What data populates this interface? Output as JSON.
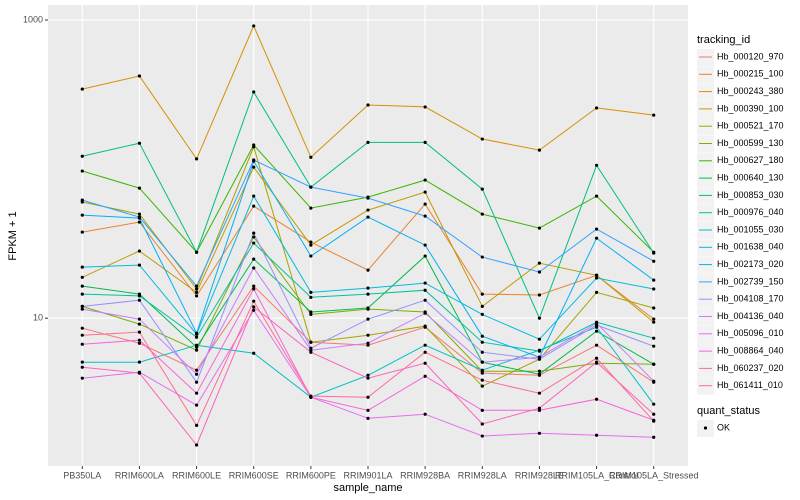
{
  "chart_data": {
    "type": "line",
    "log_y": true,
    "grid": true,
    "x_label": "sample_name",
    "y_label": "FPKM + 1",
    "categories": [
      "PB350LA",
      "RRIM600LA",
      "RRIM600LE",
      "RRIM600SE",
      "RRIM600PE",
      "RRIM901LA",
      "RRIM928BA",
      "RRIM928LA",
      "RRIM928LE",
      "RRIM105LA_Control",
      "RRIM105LA_Stressed"
    ],
    "ylim": [
      1.02,
      1260
    ],
    "yticks": [
      10,
      1000
    ],
    "legend_title": "tracking_id",
    "point_legend_title": "quant_status",
    "point_legend_items": [
      "OK"
    ],
    "series": [
      {
        "name": "Hb_000120_970",
        "color": "#F8766D",
        "values": [
          8.57,
          6.79,
          4.48,
          16.4,
          6.9,
          6.59,
          8.7,
          4.28,
          4.14,
          6.59,
          3.72
        ]
      },
      {
        "name": "Hb_000215_100",
        "color": "#EA8331",
        "values": [
          37.8,
          44.1,
          14.1,
          56.4,
          32.4,
          21.0,
          58.2,
          14.5,
          14.3,
          19.4,
          9.85
        ]
      },
      {
        "name": "Hb_000243_380",
        "color": "#D89000",
        "values": [
          344,
          421,
          117,
          912,
          120,
          269,
          261,
          159,
          134,
          257,
          230
        ]
      },
      {
        "name": "Hb_000390_100",
        "color": "#C09B00",
        "values": [
          18.8,
          28.2,
          14.9,
          103,
          30.9,
          53.1,
          70.1,
          12.0,
          23.4,
          19.4,
          9.4
        ]
      },
      {
        "name": "Hb_000521_170",
        "color": "#A3A500",
        "values": [
          60.1,
          49.9,
          15.7,
          141,
          6.9,
          7.69,
          8.84,
          3.5,
          5.31,
          14.9,
          11.7
        ]
      },
      {
        "name": "Hb_000599_130",
        "color": "#7CAE00",
        "values": [
          12.0,
          9.12,
          6.1,
          35.0,
          10.6,
          11.5,
          11.0,
          4.41,
          4.41,
          4.99,
          4.91
        ]
      },
      {
        "name": "Hb_000627_180",
        "color": "#39B600",
        "values": [
          97,
          74.5,
          27.7,
          145,
          54.7,
          64.9,
          84.4,
          49.9,
          40.2,
          65.9,
          27.7
        ]
      },
      {
        "name": "Hb_000640_130",
        "color": "#00BB4E",
        "values": [
          16.4,
          14.5,
          6.39,
          24.9,
          11.0,
          11.7,
          26.1,
          5.07,
          4.21,
          8.18,
          4.91
        ]
      },
      {
        "name": "Hb_000853_030",
        "color": "#00BF7D",
        "values": [
          122,
          149,
          27.7,
          329,
          75.7,
          151,
          151,
          73.4,
          10,
          106,
          27.3
        ]
      },
      {
        "name": "Hb_000976_040",
        "color": "#00C1A3",
        "values": [
          14.5,
          14.1,
          7.45,
          31.9,
          13.8,
          14.5,
          15.4,
          6.9,
          6.01,
          9.4,
          7.34
        ]
      },
      {
        "name": "Hb_001055_030",
        "color": "#00BFC4",
        "values": [
          5.07,
          5.07,
          6.59,
          5.82,
          2.95,
          4.14,
          6.59,
          4.48,
          6.1,
          8.7,
          2.65
        ]
      },
      {
        "name": "Hb_001638_040",
        "color": "#00BAE0",
        "values": [
          22.0,
          22.7,
          7.81,
          65.9,
          14.9,
          15.9,
          17.2,
          10.6,
          7.23,
          18.6,
          15.7
        ]
      },
      {
        "name": "Hb_002173_020",
        "color": "#00B0F6",
        "values": [
          49.1,
          46.9,
          7.93,
          113,
          26.1,
          47.6,
          30.9,
          7.57,
          5.47,
          34.4,
          18.0
        ]
      },
      {
        "name": "Hb_002739_150",
        "color": "#35A2FF",
        "values": [
          61.9,
          47.6,
          16.4,
          115,
          75.7,
          63.9,
          48.4,
          25.7,
          20.4,
          39.6,
          24.1
        ]
      },
      {
        "name": "Hb_004108_170",
        "color": "#9590FF",
        "values": [
          12.0,
          13.2,
          3.72,
          37.2,
          6.29,
          9.85,
          13.2,
          5.91,
          5.31,
          8.98,
          6.49
        ]
      },
      {
        "name": "Hb_004136_040",
        "color": "#C77CFF",
        "values": [
          11.5,
          9.85,
          4.21,
          21.7,
          6.1,
          6.79,
          10.8,
          5.07,
          5.47,
          9.26,
          3.78
        ]
      },
      {
        "name": "Hb_005096_010",
        "color": "#E76BF3",
        "values": [
          3.96,
          4.34,
          2.61,
          11.3,
          2.95,
          2.13,
          2.27,
          1.62,
          1.69,
          1.64,
          1.59
        ]
      },
      {
        "name": "Hb_008864_040",
        "color": "#FA62DB",
        "values": [
          6.69,
          7.12,
          3.14,
          15.7,
          2.95,
          2.41,
          4.08,
          2.41,
          2.41,
          2.86,
          2.07
        ]
      },
      {
        "name": "Hb_060237_020",
        "color": "#FF62BC",
        "values": [
          4.69,
          4.28,
          1.41,
          11.9,
          5.91,
          3.96,
          4.99,
          1.95,
          2.49,
          5.07,
          2.27
        ]
      },
      {
        "name": "Hb_061411_010",
        "color": "#FF6C91",
        "values": [
          7.69,
          8.06,
          1.91,
          13.0,
          3.0,
          2.95,
          5.91,
          3.84,
          3.14,
          5.39,
          2.04
        ]
      }
    ]
  }
}
